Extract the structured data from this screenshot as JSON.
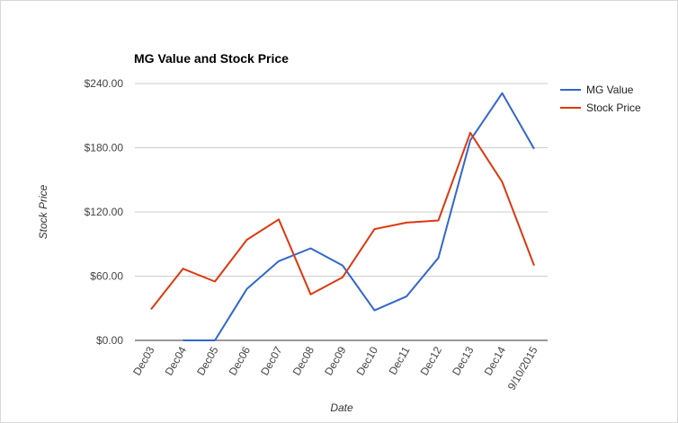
{
  "chart_data": {
    "type": "line",
    "title": "MG Value and Stock Price",
    "xlabel": "Date",
    "ylabel": "Stock Price",
    "categories": [
      "Dec03",
      "Dec04",
      "Dec05",
      "Dec06",
      "Dec07",
      "Dec08",
      "Dec09",
      "Dec10",
      "Dec11",
      "Dec12",
      "Dec13",
      "Dec14",
      "9/10/2015"
    ],
    "series": [
      {
        "name": "MG Value",
        "color": "#3366cc",
        "values": [
          null,
          0,
          0,
          48,
          74,
          86,
          70,
          28,
          41,
          77,
          187,
          231,
          179
        ]
      },
      {
        "name": "Stock Price",
        "color": "#dc3912",
        "values": [
          29,
          67,
          55,
          94,
          113,
          43,
          59,
          104,
          110,
          112,
          194,
          148,
          70
        ]
      }
    ],
    "ylim": [
      0,
      240
    ],
    "yticks": [
      0,
      60,
      120,
      180,
      240
    ],
    "ytick_labels": [
      "$0.00",
      "$60.00",
      "$120.00",
      "$180.00",
      "$240.00"
    ],
    "grid": true,
    "legend_position": "right"
  }
}
